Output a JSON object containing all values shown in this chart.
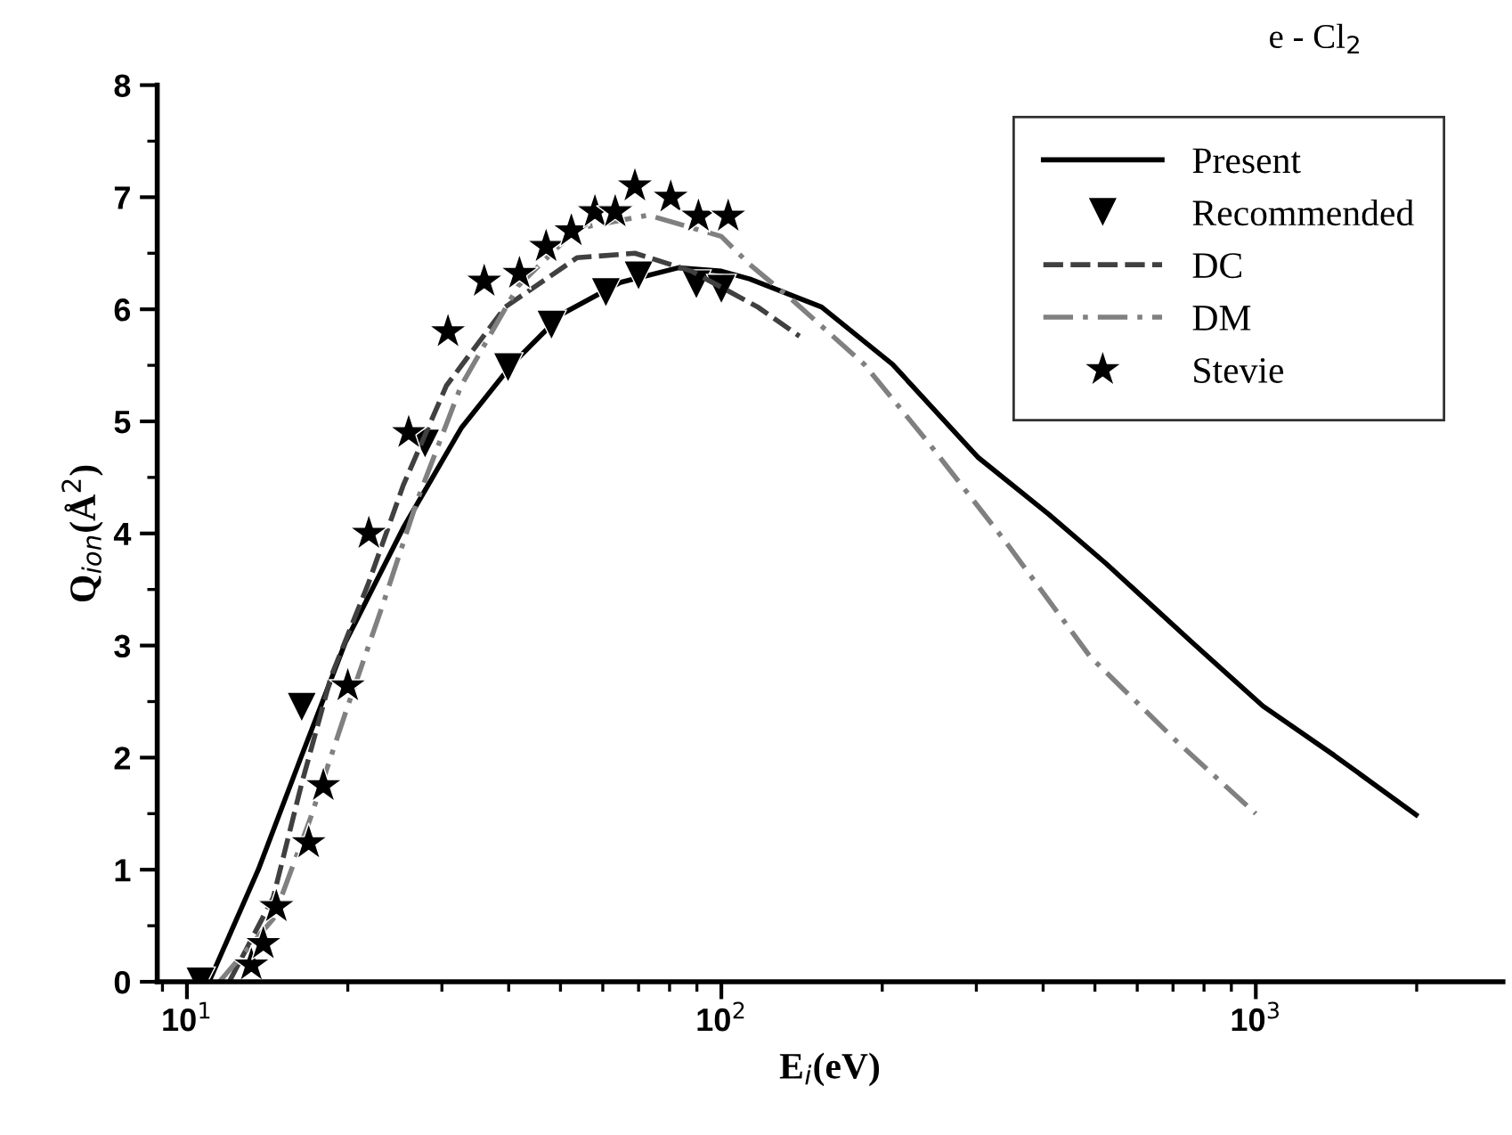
{
  "chart_data": {
    "type": "line",
    "title": "e - Cl$_{2}$",
    "xlabel": "E$_{i}$(eV)",
    "ylabel": "Q$_{ion}$(Å$^{2}$)",
    "log": "x",
    "xlim": [
      8.8,
      2900
    ],
    "ylim": [
      0,
      8
    ],
    "xticks": [
      {
        "value": 10,
        "label": "10$^{1}$"
      },
      {
        "value": 100,
        "label": "10$^{2}$"
      },
      {
        "value": 1000,
        "label": "10$^{3}$"
      }
    ],
    "yticks": [
      0,
      1,
      2,
      3,
      4,
      5,
      6,
      7,
      8
    ],
    "grid": false,
    "legend": "top right",
    "series": [
      {
        "name": "Present",
        "color": "#000000",
        "line_style": "solid",
        "marker": "none",
        "x": [
          11.0,
          13.6,
          16.4,
          19.8,
          25.4,
          32.6,
          40.6,
          50.4,
          64.7,
          83,
          100,
          113,
          154,
          209,
          302,
          410,
          525,
          759,
          1031,
          1402,
          1995
        ],
        "values": [
          0,
          1.0,
          2.02,
          3.03,
          4.05,
          4.94,
          5.51,
          5.96,
          6.24,
          6.37,
          6.34,
          6.27,
          6.02,
          5.51,
          4.68,
          4.17,
          3.73,
          3.03,
          2.46,
          2.02,
          1.49
        ]
      },
      {
        "name": "Recommended",
        "type": "scatter",
        "color": "#000000",
        "marker": "triangle",
        "x": [
          10.6,
          16.4,
          27.9,
          39.9,
          48.1,
          60.8,
          70,
          89.8,
          100
        ],
        "values": [
          0,
          2.45,
          4.8,
          5.48,
          5.86,
          6.15,
          6.3,
          6.22,
          6.18
        ]
      },
      {
        "name": "DC",
        "color": "#404040",
        "line_style": "dashed",
        "marker": "none",
        "x": [
          12,
          14.5,
          16.4,
          18.6,
          21.8,
          25.4,
          30.6,
          39.4,
          53.7,
          68.9,
          88,
          117,
          140
        ],
        "values": [
          0,
          0.75,
          1.77,
          2.72,
          3.54,
          4.43,
          5.32,
          6.02,
          6.46,
          6.5,
          6.34,
          6.02,
          5.76
        ]
      },
      {
        "name": "DM",
        "color": "#808080",
        "line_style": "dashdot",
        "marker": "none",
        "x": [
          11.5,
          14.5,
          17,
          19.8,
          23.2,
          27,
          32.6,
          41.7,
          53.7,
          73,
          100,
          113,
          136,
          185,
          244,
          341,
          490,
          713,
          1000
        ],
        "values": [
          0,
          0.56,
          1.45,
          2.4,
          3.35,
          4.3,
          5.32,
          6.21,
          6.72,
          6.84,
          6.65,
          6.4,
          6.08,
          5.51,
          4.81,
          3.92,
          2.9,
          2.14,
          1.5
        ]
      },
      {
        "name": "Stevie",
        "type": "scatter",
        "color": "#000000",
        "marker": "star",
        "x": [
          13.2,
          13.9,
          14.7,
          16.9,
          18,
          20,
          21.9,
          26,
          30.8,
          36,
          41.9,
          47,
          52.4,
          58,
          63.3,
          68.9,
          80.4,
          90.6,
          103
        ],
        "values": [
          0.15,
          0.34,
          0.67,
          1.24,
          1.75,
          2.64,
          4.0,
          4.9,
          5.8,
          6.25,
          6.32,
          6.56,
          6.7,
          6.87,
          6.87,
          7.1,
          7.0,
          6.83,
          6.83
        ]
      }
    ]
  }
}
